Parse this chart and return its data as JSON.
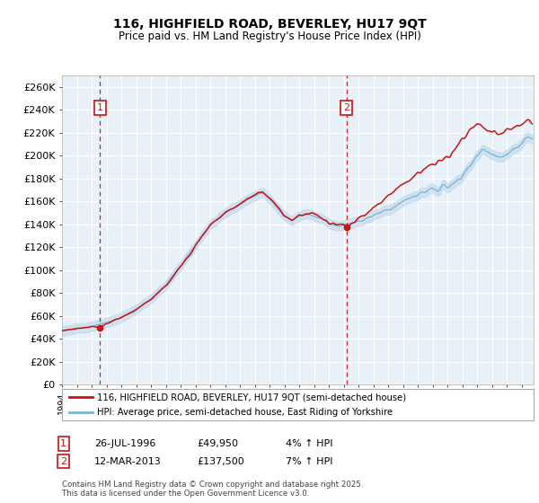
{
  "title": "116, HIGHFIELD ROAD, BEVERLEY, HU17 9QT",
  "subtitle": "Price paid vs. HM Land Registry's House Price Index (HPI)",
  "fig_bg": "#ffffff",
  "plot_bg": "#e8f0f8",
  "grid_color": "#ffffff",
  "red_color": "#cc1111",
  "blue_color": "#7ab4d4",
  "blue_fill": "#b8d4e8",
  "dashed_color": "#cc1111",
  "ylim": [
    0,
    270000
  ],
  "yticks": [
    0,
    20000,
    40000,
    60000,
    80000,
    100000,
    120000,
    140000,
    160000,
    180000,
    200000,
    220000,
    240000,
    260000
  ],
  "ytick_labels": [
    "£0",
    "£20K",
    "£40K",
    "£60K",
    "£80K",
    "£100K",
    "£120K",
    "£140K",
    "£160K",
    "£180K",
    "£200K",
    "£220K",
    "£240K",
    "£260K"
  ],
  "xmin": 1994.0,
  "xmax": 2025.8,
  "sale1_date": 1996.56,
  "sale1_price": 49950,
  "sale2_date": 2013.19,
  "sale2_price": 137500,
  "legend_line1": "116, HIGHFIELD ROAD, BEVERLEY, HU17 9QT (semi-detached house)",
  "legend_line2": "HPI: Average price, semi-detached house, East Riding of Yorkshire",
  "footnote": "Contains HM Land Registry data © Crown copyright and database right 2025.\nThis data is licensed under the Open Government Licence v3.0."
}
